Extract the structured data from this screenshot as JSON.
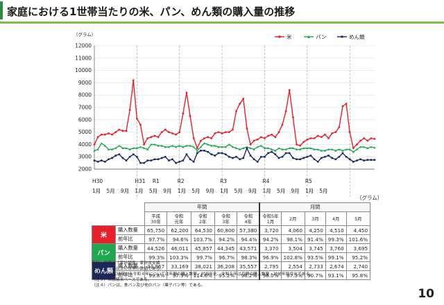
{
  "page": {
    "title": "家庭における1世帯当たりの米、パン、めん類の購入量の推移",
    "page_number": "10",
    "table_unit": "（グラム）"
  },
  "chart_data": {
    "type": "line",
    "ylabel": "（グラム）",
    "ylim": [
      2000,
      12000
    ],
    "yticks": [
      2000,
      3000,
      4000,
      5000,
      6000,
      7000,
      8000,
      9000,
      10000,
      11000,
      12000
    ],
    "x_month_labels": [
      "1月",
      "5月",
      "9月",
      "1月",
      "5月",
      "9月",
      "1月",
      "5月",
      "9月",
      "1月",
      "5月",
      "9月",
      "1月",
      "5月",
      "9月",
      "1月",
      "5月"
    ],
    "x_year_labels": [
      "H30",
      "H31",
      "R1",
      "R2",
      "R3",
      "R4",
      "R5"
    ],
    "series": [
      {
        "name": "米",
        "color": "#e8202a",
        "values": [
          4000,
          4600,
          4800,
          4800,
          4900,
          4800,
          5000,
          5200,
          5100,
          5100,
          6800,
          9200,
          6100,
          5600,
          4000,
          4500,
          4600,
          4700,
          4600,
          5000,
          5200,
          5000,
          4900,
          4800,
          5000,
          6500,
          8200,
          6300,
          4500,
          3700,
          4300,
          4500,
          4600,
          4500,
          4900,
          5000,
          4900,
          5000,
          5000,
          5200,
          6700,
          7300,
          7700,
          5300,
          4000,
          4300,
          4400,
          4600,
          4500,
          4700,
          4800,
          4600,
          5000,
          5600,
          6700,
          8400,
          6200,
          4000,
          3900,
          4200,
          4400,
          4500,
          4500,
          4700,
          4600,
          4800,
          4500,
          4900,
          5000,
          5400,
          7100,
          7300,
          5000,
          3700,
          4000,
          4300,
          4500,
          4300,
          4500,
          4450
        ]
      },
      {
        "name": "パン",
        "color": "#1fa84f",
        "values": [
          3500,
          3600,
          4100,
          3900,
          3600,
          3600,
          3700,
          3900,
          3700,
          3700,
          3600,
          3700,
          3700,
          3800,
          3700,
          3600,
          4000,
          4000,
          3900,
          3900,
          3800,
          3800,
          3900,
          3800,
          3900,
          3800,
          3900,
          3900,
          3800,
          3500,
          3800,
          4100,
          4000,
          3900,
          3900,
          3800,
          3800,
          3800,
          4000,
          3800,
          3700,
          3600,
          3700,
          3800,
          3700,
          3600,
          3800,
          3900,
          3700,
          3700,
          3600,
          3500,
          3700,
          3600,
          3600,
          3700,
          3700,
          3600,
          3600,
          3700,
          3700,
          3700,
          3600,
          3600,
          3500,
          3500,
          3600,
          3600,
          3500,
          3600,
          3500,
          3600,
          3600,
          3400,
          3600,
          3800,
          3800,
          3700,
          3800,
          3750
        ]
      },
      {
        "name": "めん類",
        "color": "#1a2a5e",
        "values": [
          2700,
          2600,
          2700,
          2600,
          2800,
          2900,
          3100,
          3200,
          2900,
          2700,
          3000,
          3200,
          3000,
          2500,
          2500,
          2700,
          2700,
          2800,
          2800,
          2900,
          3000,
          2700,
          2800,
          2500,
          2600,
          2700,
          3200,
          2800,
          2600,
          3300,
          3500,
          3500,
          3400,
          3200,
          3100,
          3300,
          3300,
          3200,
          3000,
          2900,
          3000,
          2800,
          2900,
          3700,
          3100,
          2800,
          2600,
          3000,
          3000,
          3300,
          3400,
          3200,
          2900,
          3000,
          3300,
          3300,
          2900,
          2800,
          2800,
          2900,
          3000,
          3100,
          2800,
          2600,
          2900,
          3000,
          3100,
          2900,
          2800,
          3000,
          3300,
          3000,
          2800,
          2600,
          2700,
          2800,
          2700,
          2750,
          2750,
          2750
        ]
      }
    ],
    "table": {
      "col_group_year": "年間",
      "col_group_month": "月間",
      "columns": [
        [
          "平成",
          "30年"
        ],
        [
          "令和",
          "元年"
        ],
        [
          "令和",
          "2年"
        ],
        [
          "令和",
          "3年"
        ],
        [
          "令和",
          "4年"
        ],
        [
          "令和5年",
          "1月"
        ],
        [
          "2月"
        ],
        [
          "3月"
        ],
        [
          "4月"
        ],
        [
          "5月"
        ]
      ],
      "rows": [
        {
          "item": "米",
          "color": "#e8202a",
          "qty_label": "購入数量",
          "ratio_label": "前年比",
          "qty": [
            "65,750",
            "62,200",
            "64,530",
            "60,800",
            "57,380",
            "3,720",
            "4,060",
            "4,250",
            "4,510",
            "4,450"
          ],
          "ratio": [
            "97.7%",
            "94.6%",
            "103.7%",
            "94.2%",
            "94.4%",
            "94.2%",
            "98.1%",
            "91.4%",
            "99.3%",
            "101.6%"
          ]
        },
        {
          "item": "パン",
          "color": "#1fa84f",
          "qty_label": "購入数量",
          "ratio_label": "前年比",
          "qty": [
            "44,526",
            "46,011",
            "45,857",
            "44,345",
            "43,571",
            "3,370",
            "3,504",
            "3,745",
            "3,760",
            "3,695"
          ],
          "ratio": [
            "99.3%",
            "103.3%",
            "99.7%",
            "96.7%",
            "98.3%",
            "96.9%",
            "102.8%",
            "93.5%",
            "99.1%",
            "95.2%"
          ]
        },
        {
          "item": "めん類",
          "color": "#1a2a5e",
          "qty_label": "購入数量",
          "ratio_label": "前年比",
          "qty": [
            "33,867",
            "33,169",
            "38,021",
            "36,208",
            "35,557",
            "2,795",
            "2,554",
            "2,733",
            "2,674",
            "2,740"
          ],
          "ratio": [
            "99.8%",
            "97.9%",
            "114.6%",
            "95.2%",
            "98.2%",
            "98.0%",
            "87.3%",
            "90.7%",
            "93.1%",
            "95.8%"
          ]
        }
      ]
    }
  },
  "notes": [
    "資料：総務省「家計調査」家計収支編",
    "（注１）二人以上の世帯の数値である。",
    "（注２）平成30年から令和４年については年間の購入数量・対前年比、令和５年は月間の購入数量・対前年同月比である。",
    "（注３）米は精米ベースである。",
    "（注４）パンは、食パン及び他のパン（菓子パン等）である。"
  ]
}
